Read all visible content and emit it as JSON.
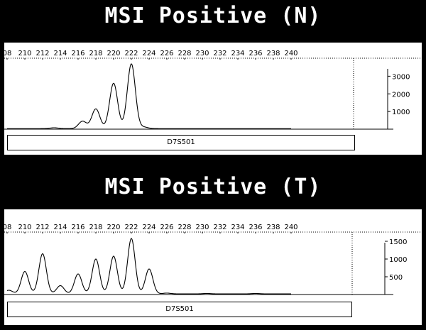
{
  "chart_data": [
    {
      "type": "line",
      "title": "MSI Positive (N)",
      "x_ticks": [
        "08",
        "210",
        "212",
        "214",
        "216",
        "218",
        "220",
        "222",
        "224",
        "226",
        "228",
        "230",
        "232",
        "234",
        "236",
        "238",
        "240"
      ],
      "xlim": [
        208,
        241.5
      ],
      "y_ticks": [
        "3000",
        "2000",
        "1000"
      ],
      "ylim": [
        0,
        3900
      ],
      "peaks": [
        {
          "x": 213.3,
          "y": 80
        },
        {
          "x": 216.5,
          "y": 450
        },
        {
          "x": 218.0,
          "y": 1150
        },
        {
          "x": 220.0,
          "y": 2600
        },
        {
          "x": 222.0,
          "y": 3700
        },
        {
          "x": 223.4,
          "y": 120
        }
      ],
      "marker": "D7S501",
      "baseline": 30
    },
    {
      "type": "line",
      "title": "MSI Positive (T)",
      "x_ticks": [
        "08",
        "210",
        "212",
        "214",
        "216",
        "218",
        "220",
        "222",
        "224",
        "226",
        "228",
        "230",
        "232",
        "234",
        "236",
        "238",
        "240"
      ],
      "xlim": [
        208,
        241.5
      ],
      "y_ticks": [
        "1500",
        "1000",
        "500"
      ],
      "ylim": [
        0,
        1700
      ],
      "peaks": [
        {
          "x": 208.2,
          "y": 120
        },
        {
          "x": 210.0,
          "y": 650
        },
        {
          "x": 212.0,
          "y": 1150
        },
        {
          "x": 214.0,
          "y": 250
        },
        {
          "x": 216.0,
          "y": 580
        },
        {
          "x": 218.0,
          "y": 1000
        },
        {
          "x": 220.0,
          "y": 1080
        },
        {
          "x": 222.0,
          "y": 1580
        },
        {
          "x": 224.0,
          "y": 720
        },
        {
          "x": 226.0,
          "y": 40
        },
        {
          "x": 230.5,
          "y": 30
        },
        {
          "x": 236.0,
          "y": 30
        }
      ],
      "marker": "D7S501",
      "baseline": 20
    }
  ]
}
